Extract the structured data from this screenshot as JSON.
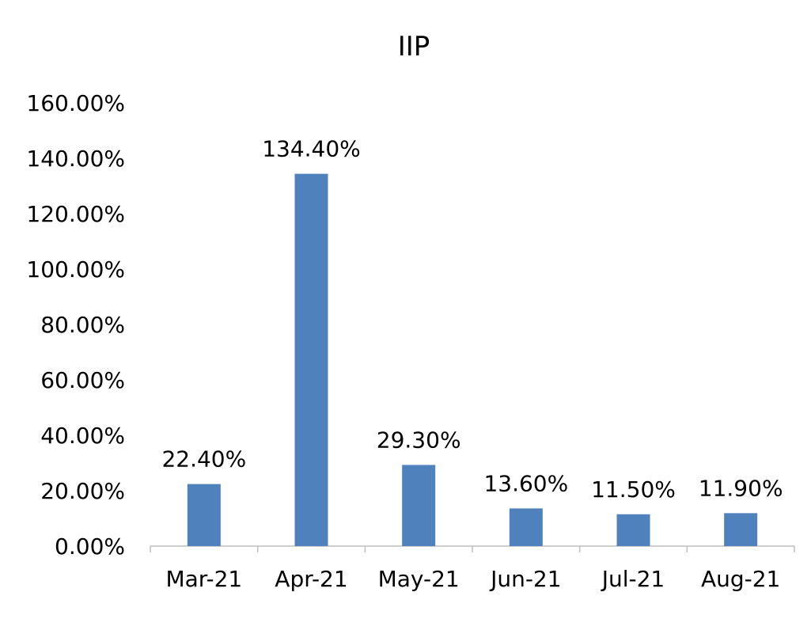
{
  "chart_data": {
    "type": "bar",
    "title": "IIP",
    "xlabel": "",
    "ylabel": "",
    "categories": [
      "Mar-21",
      "Apr-21",
      "May-21",
      "Jun-21",
      "Jul-21",
      "Aug-21"
    ],
    "values": [
      22.4,
      134.4,
      29.3,
      13.6,
      11.5,
      11.9
    ],
    "data_labels": [
      "22.40%",
      "134.40%",
      "29.30%",
      "13.60%",
      "11.50%",
      "11.90%"
    ],
    "ylim": [
      0,
      160
    ],
    "yticks": [
      0,
      20,
      40,
      60,
      80,
      100,
      120,
      140,
      160
    ],
    "ytick_labels": [
      "0.00%",
      "20.00%",
      "40.00%",
      "60.00%",
      "80.00%",
      "100.00%",
      "120.00%",
      "140.00%",
      "160.00%"
    ],
    "grid": false,
    "legend": "none",
    "bar_color": "#4F81BD",
    "axis_color": "#BFBFBF"
  }
}
